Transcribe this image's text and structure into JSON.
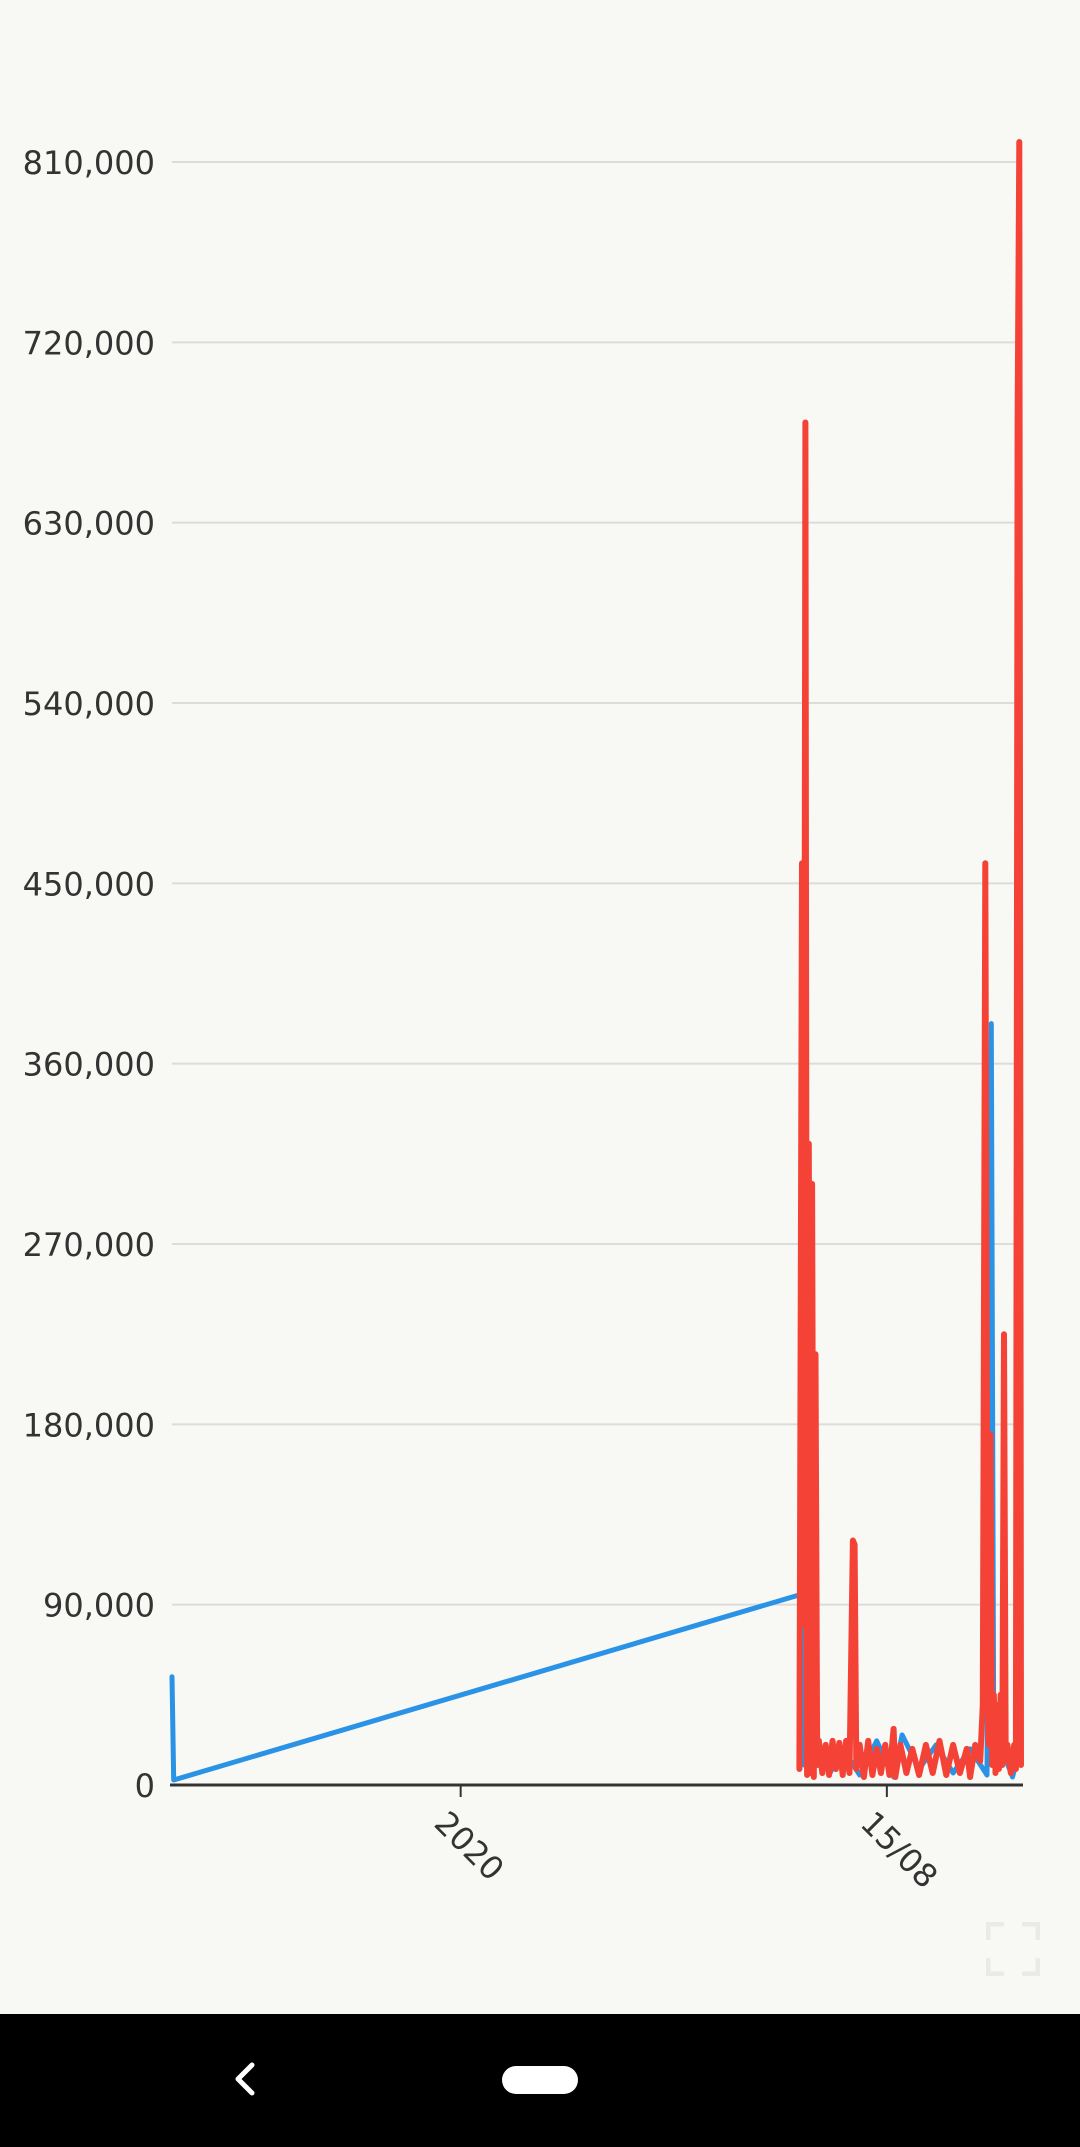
{
  "chart_data": {
    "type": "line",
    "title": "",
    "xlabel": "",
    "ylabel": "",
    "ylim": [
      0,
      810000
    ],
    "y_ticks": [
      {
        "value": 810000,
        "label": "810,000"
      },
      {
        "value": 720000,
        "label": "720,000"
      },
      {
        "value": 630000,
        "label": "630,000"
      },
      {
        "value": 540000,
        "label": "540,000"
      },
      {
        "value": 450000,
        "label": "450,000"
      },
      {
        "value": 360000,
        "label": "360,000"
      },
      {
        "value": 270000,
        "label": "270,000"
      },
      {
        "value": 180000,
        "label": "180,000"
      },
      {
        "value": 90000,
        "label": "90,000"
      },
      {
        "value": 0,
        "label": "0"
      }
    ],
    "x_ticks": [
      {
        "pos": 0.34,
        "label": "2020"
      },
      {
        "pos": 0.842,
        "label": "15/08"
      }
    ],
    "grid": true,
    "legend": "none",
    "series": [
      {
        "color": "#2b93e6",
        "points": [
          [
            0.0,
            54000
          ],
          [
            0.002,
            2500
          ],
          [
            0.74,
            95000
          ],
          [
            0.742,
            400000
          ],
          [
            0.744,
            10000
          ],
          [
            0.748,
            120000
          ],
          [
            0.752,
            8000
          ],
          [
            0.76,
            20000
          ],
          [
            0.775,
            6000
          ],
          [
            0.79,
            18000
          ],
          [
            0.81,
            5000
          ],
          [
            0.83,
            22000
          ],
          [
            0.85,
            4000
          ],
          [
            0.86,
            25000
          ],
          [
            0.88,
            8000
          ],
          [
            0.9,
            20000
          ],
          [
            0.92,
            6000
          ],
          [
            0.94,
            18000
          ],
          [
            0.96,
            5000
          ],
          [
            0.965,
            380000
          ],
          [
            0.968,
            10000
          ],
          [
            0.98,
            15000
          ],
          [
            0.99,
            4000
          ],
          [
            1.0,
            20000
          ]
        ]
      },
      {
        "color": "#f44336",
        "points": [
          [
            0.739,
            8000
          ],
          [
            0.742,
            460000
          ],
          [
            0.744,
            80000
          ],
          [
            0.746,
            680000
          ],
          [
            0.748,
            5000
          ],
          [
            0.75,
            320000
          ],
          [
            0.752,
            6000
          ],
          [
            0.754,
            300000
          ],
          [
            0.756,
            4000
          ],
          [
            0.758,
            215000
          ],
          [
            0.76,
            10000
          ],
          [
            0.762,
            22000
          ],
          [
            0.766,
            6000
          ],
          [
            0.77,
            20000
          ],
          [
            0.774,
            5000
          ],
          [
            0.778,
            22000
          ],
          [
            0.782,
            8000
          ],
          [
            0.786,
            21000
          ],
          [
            0.79,
            5000
          ],
          [
            0.794,
            22000
          ],
          [
            0.798,
            6000
          ],
          [
            0.802,
            122000
          ],
          [
            0.804,
            120000
          ],
          [
            0.806,
            8000
          ],
          [
            0.81,
            20000
          ],
          [
            0.815,
            4000
          ],
          [
            0.82,
            22000
          ],
          [
            0.825,
            5000
          ],
          [
            0.83,
            18000
          ],
          [
            0.835,
            6000
          ],
          [
            0.84,
            20000
          ],
          [
            0.845,
            5000
          ],
          [
            0.85,
            28000
          ],
          [
            0.852,
            4000
          ],
          [
            0.858,
            20000
          ],
          [
            0.865,
            6000
          ],
          [
            0.872,
            18000
          ],
          [
            0.88,
            5000
          ],
          [
            0.888,
            20000
          ],
          [
            0.896,
            6000
          ],
          [
            0.904,
            22000
          ],
          [
            0.912,
            5000
          ],
          [
            0.92,
            20000
          ],
          [
            0.928,
            6000
          ],
          [
            0.936,
            18000
          ],
          [
            0.94,
            4000
          ],
          [
            0.946,
            20000
          ],
          [
            0.952,
            12000
          ],
          [
            0.955,
            40000
          ],
          [
            0.958,
            460000
          ],
          [
            0.96,
            170000
          ],
          [
            0.962,
            20000
          ],
          [
            0.964,
            175000
          ],
          [
            0.966,
            10000
          ],
          [
            0.968,
            45000
          ],
          [
            0.97,
            6000
          ],
          [
            0.972,
            40000
          ],
          [
            0.974,
            8000
          ],
          [
            0.976,
            45000
          ],
          [
            0.978,
            10000
          ],
          [
            0.98,
            225000
          ],
          [
            0.982,
            12000
          ],
          [
            0.984,
            20000
          ],
          [
            0.988,
            6000
          ],
          [
            0.992,
            20000
          ],
          [
            0.994,
            8000
          ],
          [
            0.996,
            680000
          ],
          [
            0.998,
            820000
          ],
          [
            1.0,
            10000
          ]
        ]
      }
    ]
  },
  "ui": {
    "accent_blue": "#2b93e6",
    "accent_red": "#f44336",
    "nav_icons": [
      "chevron-left-icon",
      "home-pill-icon"
    ]
  }
}
